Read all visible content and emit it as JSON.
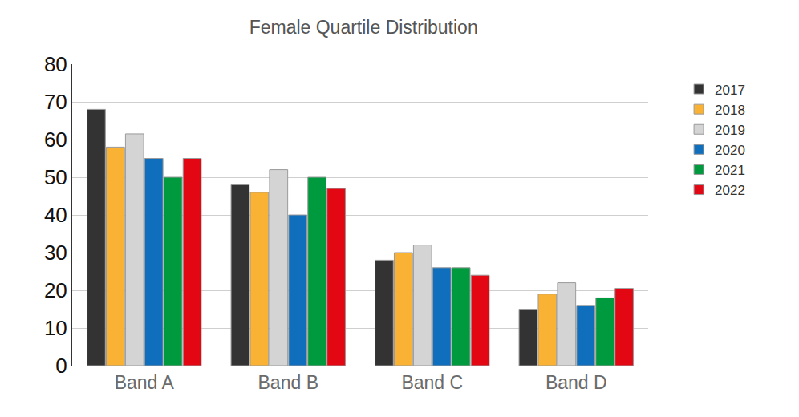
{
  "chart_data": {
    "type": "bar",
    "title": "Female Quartile Distribution",
    "categories": [
      "Band A",
      "Band B",
      "Band C",
      "Band D"
    ],
    "series": [
      {
        "name": "2017",
        "color": "#333333",
        "values": [
          68,
          48,
          28,
          15
        ]
      },
      {
        "name": "2018",
        "color": "#f9b233",
        "values": [
          58,
          46,
          30,
          19
        ]
      },
      {
        "name": "2019",
        "color": "#d4d4d4",
        "values": [
          61.5,
          52,
          32,
          22
        ]
      },
      {
        "name": "2020",
        "color": "#0f6fbd",
        "values": [
          55,
          40,
          26,
          16
        ]
      },
      {
        "name": "2021",
        "color": "#009a3e",
        "values": [
          50,
          50,
          26,
          18
        ]
      },
      {
        "name": "2022",
        "color": "#e30613",
        "values": [
          55,
          47,
          24,
          20.5
        ]
      }
    ],
    "ylim": [
      0,
      80
    ],
    "yticks": [
      0,
      10,
      20,
      30,
      40,
      50,
      60,
      70,
      80
    ],
    "grid": true,
    "legend": "right"
  }
}
